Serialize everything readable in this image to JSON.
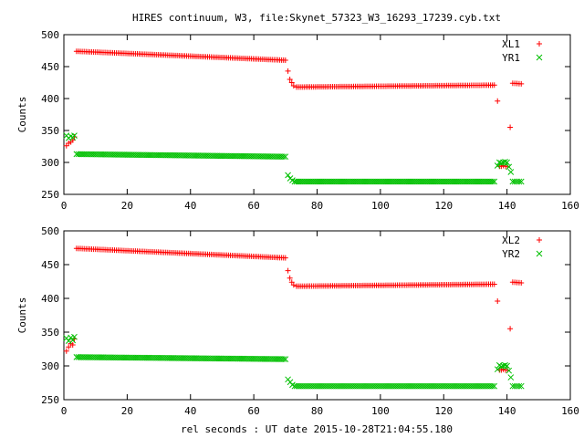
{
  "title": "HIRES continuum, W3, file:Skynet_57323_W3_16293_17239.cyb.txt",
  "xlabel": "rel seconds : UT date 2015-10-28T21:04:55.180",
  "colors": {
    "red": "#ff0000",
    "green": "#00c000"
  },
  "chart_data": [
    {
      "type": "scatter",
      "ylabel": "Counts",
      "xlim": [
        0,
        160
      ],
      "ylim": [
        250,
        500
      ],
      "xticks": [
        "0",
        "20",
        "40",
        "60",
        "80",
        "100",
        "120",
        "140",
        "160"
      ],
      "yticks": [
        "250",
        "300",
        "350",
        "400",
        "450",
        "500"
      ],
      "legend_position": "top-right",
      "series": [
        {
          "name": "XL1",
          "marker": "plus",
          "color": "#ff0000",
          "segments": [
            {
              "x": [
                0.8,
                1.5,
                2.2,
                2.8,
                3.3
              ],
              "y": [
                326,
                330,
                332,
                335,
                340
              ]
            },
            {
              "from": 4,
              "to": 70,
              "y0": 474,
              "y1": 460
            },
            {
              "x": [
                70.8,
                71.4,
                72.0,
                72.6
              ],
              "y": [
                443,
                430,
                425,
                420
              ]
            },
            {
              "from": 73.5,
              "to": 136,
              "y0": 418,
              "y1": 421
            },
            {
              "x": [
                137.0,
                137.6,
                138.2,
                138.8,
                139.5,
                140.1
              ],
              "y": [
                396,
                294,
                294,
                295,
                294,
                294
              ]
            },
            {
              "x": [
                141.0
              ],
              "y": [
                355
              ]
            },
            {
              "from": 141.8,
              "to": 144.5,
              "y0": 424,
              "y1": 423
            }
          ]
        },
        {
          "name": "YR1",
          "marker": "cross",
          "color": "#00c000",
          "segments": [
            {
              "x": [
                0.8,
                1.5,
                2.2,
                2.8,
                3.3
              ],
              "y": [
                342,
                338,
                341,
                339,
                342
              ]
            },
            {
              "from": 4,
              "to": 70,
              "y0": 313,
              "y1": 309
            },
            {
              "x": [
                70.8,
                71.5,
                72.2,
                72.9
              ],
              "y": [
                280,
                275,
                272,
                270
              ]
            },
            {
              "from": 73.5,
              "to": 136,
              "y0": 270,
              "y1": 270
            },
            {
              "x": [
                137.0,
                137.6,
                138.2,
                138.8,
                139.4,
                140.0,
                140.6,
                141.2
              ],
              "y": [
                295,
                300,
                299,
                300,
                301,
                300,
                293,
                285
              ]
            },
            {
              "from": 141.8,
              "to": 144.5,
              "y0": 270,
              "y1": 270
            }
          ]
        }
      ]
    },
    {
      "type": "scatter",
      "ylabel": "Counts",
      "xlim": [
        0,
        160
      ],
      "ylim": [
        250,
        500
      ],
      "xticks": [
        "0",
        "20",
        "40",
        "60",
        "80",
        "100",
        "120",
        "140",
        "160"
      ],
      "yticks": [
        "250",
        "300",
        "350",
        "400",
        "450",
        "500"
      ],
      "legend_position": "top-right",
      "series": [
        {
          "name": "XL2",
          "marker": "plus",
          "color": "#ff0000",
          "segments": [
            {
              "x": [
                0.8,
                1.5,
                2.2,
                2.8,
                3.3
              ],
              "y": [
                322,
                328,
                333,
                331,
                340
              ]
            },
            {
              "from": 4,
              "to": 70,
              "y0": 474,
              "y1": 460
            },
            {
              "x": [
                70.8,
                71.4,
                72.0,
                72.6
              ],
              "y": [
                441,
                430,
                424,
                420
              ]
            },
            {
              "from": 73.5,
              "to": 136,
              "y0": 418,
              "y1": 421
            },
            {
              "x": [
                137.0,
                137.6,
                138.2,
                138.8,
                139.5,
                140.1
              ],
              "y": [
                396,
                294,
                294,
                295,
                294,
                294
              ]
            },
            {
              "x": [
                141.0
              ],
              "y": [
                355
              ]
            },
            {
              "from": 141.8,
              "to": 144.5,
              "y0": 424,
              "y1": 423
            }
          ]
        },
        {
          "name": "YR2",
          "marker": "cross",
          "color": "#00c000",
          "segments": [
            {
              "x": [
                0.8,
                1.5,
                2.2,
                2.8,
                3.3
              ],
              "y": [
                341,
                337,
                342,
                338,
                343
              ]
            },
            {
              "from": 4,
              "to": 70,
              "y0": 313,
              "y1": 310
            },
            {
              "x": [
                70.8,
                71.5,
                72.2,
                72.9
              ],
              "y": [
                280,
                276,
                272,
                270
              ]
            },
            {
              "from": 73.5,
              "to": 136,
              "y0": 270,
              "y1": 270
            },
            {
              "x": [
                137.0,
                137.6,
                138.2,
                138.8,
                139.4,
                140.0,
                140.6,
                141.2
              ],
              "y": [
                295,
                301,
                299,
                300,
                301,
                300,
                293,
                283
              ]
            },
            {
              "from": 141.8,
              "to": 144.5,
              "y0": 270,
              "y1": 270
            }
          ]
        }
      ]
    }
  ]
}
